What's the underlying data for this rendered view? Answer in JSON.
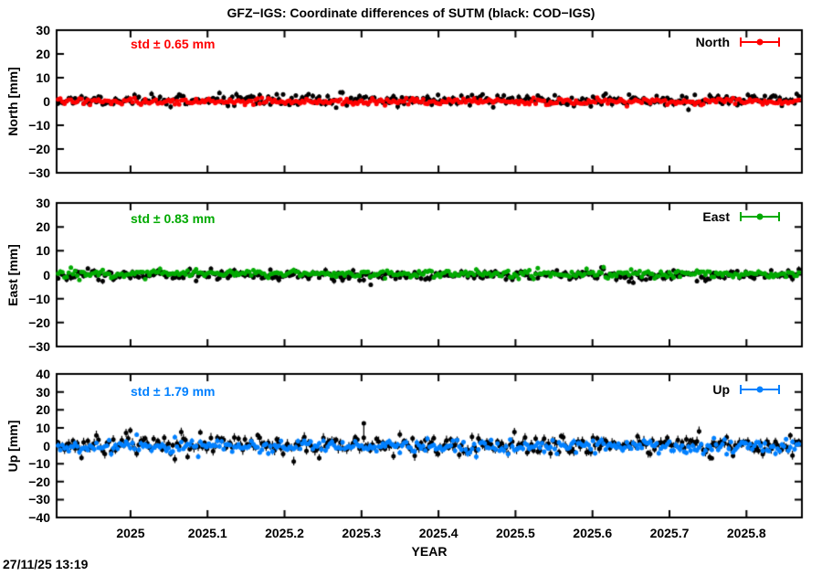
{
  "title": "GFZ−IGS: Coordinate differences of SUTM (black: COD−IGS)",
  "timestamp": "27/11/25 13:19",
  "x_axis": {
    "label": "YEAR",
    "tick_labels": [
      "2025",
      "2025.1",
      "2025.2",
      "2025.3",
      "2025.4",
      "2025.5",
      "2025.6",
      "2025.7",
      "2025.8"
    ],
    "tick_values": [
      2025,
      2025.1,
      2025.2,
      2025.3,
      2025.4,
      2025.5,
      2025.6,
      2025.7,
      2025.8
    ],
    "range": [
      2024.904,
      2025.872
    ],
    "data_start": 2024.906,
    "data_end": 2025.868
  },
  "chart_data": [
    {
      "type": "scatter",
      "panel": "north",
      "ylabel": "North [mm]",
      "legend_label": "North",
      "std_label": "std ± 0.65 mm",
      "color": "#ff0000",
      "ylim": [
        -30,
        30
      ],
      "yticks": [
        30,
        20,
        10,
        0,
        -10,
        -20,
        -30
      ],
      "series": [
        {
          "name": "COD-IGS",
          "color": "#000000",
          "marker": "circle-errorbar",
          "mean": 0.5,
          "std": 1.15,
          "n": 350,
          "seed": 11
        },
        {
          "name": "GFZ-IGS",
          "color": "#ff0000",
          "marker": "circle-errorbar",
          "mean": 0.0,
          "std": 0.65,
          "n": 350,
          "seed": 12
        }
      ],
      "outliers": []
    },
    {
      "type": "scatter",
      "panel": "east",
      "ylabel": "East [mm]",
      "legend_label": "East",
      "std_label": "std ± 0.83 mm",
      "color": "#00aa00",
      "ylim": [
        -30,
        30
      ],
      "yticks": [
        30,
        20,
        10,
        0,
        -10,
        -20,
        -30
      ],
      "series": [
        {
          "name": "COD-IGS",
          "color": "#000000",
          "marker": "circle-errorbar",
          "mean": -0.2,
          "std": 1.1,
          "n": 350,
          "seed": 21
        },
        {
          "name": "GFZ-IGS",
          "color": "#00aa00",
          "marker": "circle-errorbar",
          "mean": 0.4,
          "std": 0.83,
          "n": 350,
          "seed": 22
        }
      ],
      "outliers": [
        {
          "series": "COD-IGS",
          "x": 2025.312,
          "y": -4.2,
          "err_low": 0.8,
          "err_high": 0.8
        }
      ]
    },
    {
      "type": "scatter",
      "panel": "up",
      "ylabel": "Up [mm]",
      "legend_label": "Up",
      "std_label": "std ± 1.79 mm",
      "color": "#0080ff",
      "ylim": [
        -40,
        40
      ],
      "yticks": [
        40,
        30,
        20,
        10,
        0,
        -10,
        -20,
        -30,
        -40
      ],
      "series": [
        {
          "name": "COD-IGS",
          "color": "#000000",
          "marker": "circle-errorbar",
          "mean": 0.5,
          "std": 2.8,
          "n": 350,
          "seed": 31
        },
        {
          "name": "GFZ-IGS",
          "color": "#0080ff",
          "marker": "circle-errorbar",
          "mean": -0.5,
          "std": 1.79,
          "n": 350,
          "seed": 32
        }
      ],
      "outliers": [
        {
          "series": "COD-IGS",
          "x": 2025.303,
          "y": 12.5,
          "err_low": 10.5,
          "err_high": 0.5
        },
        {
          "series": "COD-IGS",
          "x": 2025.755,
          "y": -7.0,
          "err_low": 0.8,
          "err_high": 0.8
        }
      ]
    }
  ]
}
